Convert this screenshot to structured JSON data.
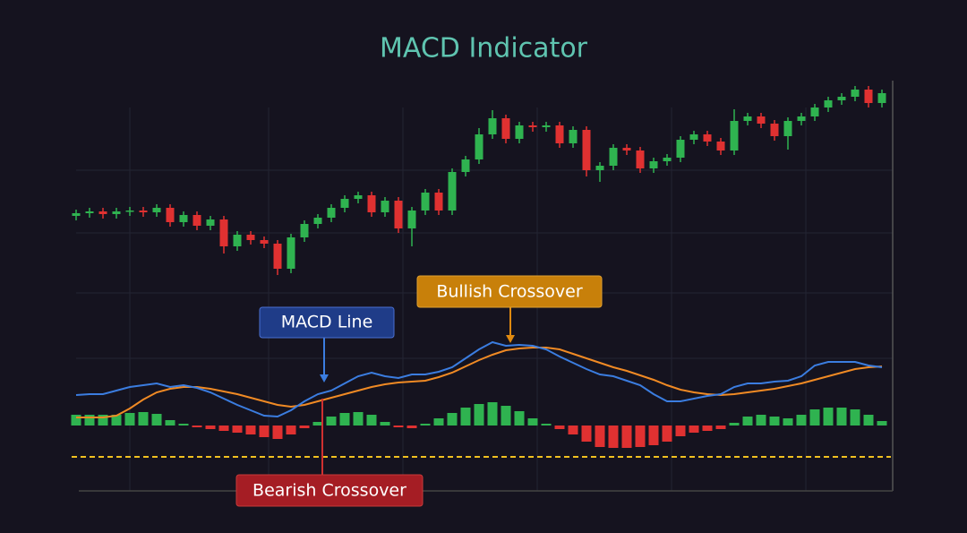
{
  "chart_data": [
    {
      "type": "candlestick",
      "title": "MACD Indicator",
      "ylim": [
        0,
        595
      ],
      "color_up": "#2fb350",
      "color_down": "#e03131",
      "open": [
        354,
        357,
        359,
        356,
        359,
        360,
        358,
        363,
        347,
        355,
        343,
        350,
        320,
        333,
        327,
        323,
        295,
        330,
        345,
        352,
        363,
        373,
        377,
        358,
        371,
        340,
        360,
        380,
        360,
        403,
        417,
        445,
        463,
        440,
        455,
        453,
        455,
        435,
        450,
        405,
        410,
        430,
        427,
        407,
        415,
        419,
        439,
        445,
        437,
        427,
        460,
        465,
        457,
        443,
        460,
        465,
        475,
        483,
        487,
        495,
        480
      ],
      "high": [
        361,
        363,
        363,
        363,
        364,
        364,
        367,
        367,
        359,
        359,
        354,
        354,
        337,
        337,
        331,
        327,
        334,
        349,
        356,
        367,
        377,
        381,
        381,
        375,
        375,
        364,
        384,
        384,
        407,
        421,
        452,
        472,
        467,
        459,
        459,
        459,
        459,
        454,
        454,
        414,
        434,
        434,
        431,
        419,
        423,
        443,
        449,
        449,
        441,
        473,
        469,
        469,
        461,
        464,
        469,
        479,
        487,
        491,
        499,
        499,
        495
      ],
      "low": [
        349,
        352,
        351,
        351,
        354,
        353,
        353,
        342,
        342,
        338,
        338,
        312,
        315,
        322,
        318,
        288,
        290,
        325,
        340,
        347,
        358,
        368,
        353,
        353,
        335,
        320,
        355,
        355,
        355,
        398,
        412,
        440,
        435,
        435,
        448,
        448,
        430,
        430,
        398,
        392,
        405,
        422,
        402,
        402,
        410,
        414,
        434,
        432,
        422,
        422,
        455,
        452,
        438,
        428,
        455,
        460,
        470,
        478,
        482,
        475,
        475
      ],
      "close": [
        357,
        359,
        356,
        359,
        360,
        358,
        363,
        347,
        355,
        343,
        350,
        320,
        333,
        327,
        323,
        295,
        330,
        345,
        352,
        363,
        373,
        377,
        358,
        371,
        340,
        360,
        380,
        360,
        403,
        417,
        445,
        463,
        440,
        455,
        453,
        455,
        435,
        450,
        405,
        410,
        430,
        427,
        407,
        415,
        419,
        439,
        445,
        437,
        427,
        460,
        465,
        457,
        443,
        460,
        465,
        475,
        483,
        487,
        495,
        480,
        491
      ]
    },
    {
      "type": "macd",
      "ylim": [
        -120,
        120
      ],
      "macd_color": "#3b7de0",
      "signal_color": "#f08a24",
      "hist_up": "#2fb350",
      "hist_down": "#e03131",
      "reference_line": -35,
      "reference_color": "#f0c020",
      "macd": [
        34,
        35,
        35,
        39,
        43,
        45,
        47,
        43,
        45,
        42,
        37,
        30,
        23,
        17,
        11,
        10,
        17,
        27,
        35,
        39,
        47,
        55,
        59,
        55,
        53,
        57,
        57,
        60,
        65,
        75,
        85,
        93,
        89,
        90,
        89,
        85,
        77,
        70,
        63,
        57,
        55,
        50,
        45,
        35,
        27,
        27,
        30,
        33,
        35,
        43,
        47,
        47,
        49,
        50,
        55,
        67,
        71,
        71,
        71,
        67,
        65
      ],
      "signal": [
        9,
        9,
        9,
        11,
        19,
        29,
        37,
        41,
        43,
        43,
        41,
        38,
        35,
        31,
        27,
        23,
        21,
        23,
        27,
        31,
        35,
        39,
        43,
        46,
        48,
        49,
        50,
        54,
        59,
        66,
        73,
        79,
        84,
        86,
        87,
        87,
        85,
        80,
        75,
        70,
        65,
        61,
        56,
        51,
        45,
        40,
        37,
        35,
        34,
        35,
        37,
        39,
        41,
        44,
        47,
        51,
        55,
        59,
        63,
        65,
        66
      ],
      "histogram": [
        12,
        12,
        12,
        12,
        14,
        15,
        13,
        6,
        2,
        -2,
        -4,
        -6,
        -8,
        -10,
        -13,
        -15,
        -10,
        -3,
        4,
        10,
        14,
        15,
        12,
        4,
        -2,
        -3,
        2,
        8,
        14,
        20,
        24,
        26,
        22,
        16,
        8,
        2,
        -4,
        -10,
        -18,
        -24,
        -25,
        -25,
        -24,
        -22,
        -18,
        -12,
        -8,
        -6,
        -4,
        3,
        10,
        12,
        10,
        8,
        12,
        18,
        20,
        20,
        18,
        12,
        5
      ],
      "annotations": [
        "MACD Line",
        "Bullish Crossover",
        "Bearish Crossover"
      ]
    }
  ]
}
